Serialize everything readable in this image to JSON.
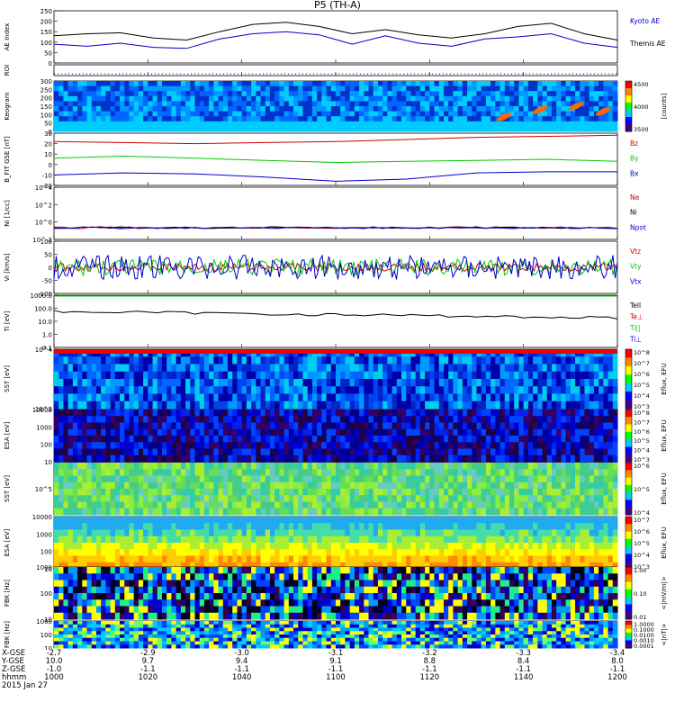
{
  "title": "P5 (TH-A)",
  "date_label": "2015 Jan 27",
  "footer": {
    "row_labels": [
      "X-GSE",
      "Y-GSE",
      "Z-GSE",
      "hhmm"
    ],
    "ticks": [
      {
        "xgse": "-2.7",
        "ygse": "10.0",
        "zgse": "-1.0",
        "hhmm": "1000"
      },
      {
        "xgse": "-2.9",
        "ygse": "9.7",
        "zgse": "-1.1",
        "hhmm": "1020"
      },
      {
        "xgse": "-3.0",
        "ygse": "9.4",
        "zgse": "-1.1",
        "hhmm": "1040"
      },
      {
        "xgse": "-3.1",
        "ygse": "9.1",
        "zgse": "-1.1",
        "hhmm": "1100"
      },
      {
        "xgse": "-3.2",
        "ygse": "8.8",
        "zgse": "-1.1",
        "hhmm": "1120"
      },
      {
        "xgse": "-3.3",
        "ygse": "8.4",
        "zgse": "-1.1",
        "hhmm": "1140"
      },
      {
        "xgse": "-3.4",
        "ygse": "8.0",
        "zgse": "-1.1",
        "hhmm": "1200"
      }
    ]
  },
  "chart_data": [
    {
      "type": "line",
      "id": "ae",
      "ylabel": "AE Index",
      "ylim": [
        0,
        250
      ],
      "yticks": [
        "0",
        "50",
        "100",
        "150",
        "200",
        "250"
      ],
      "x": [
        1000,
        1010,
        1020,
        1030,
        1040,
        1050,
        1055,
        1100,
        1105,
        1110,
        1115,
        1120,
        1125,
        1130,
        1140,
        1150,
        1155,
        1200
      ],
      "series": [
        {
          "name": "Kyoto AE",
          "color": "#0000cc",
          "values": [
            90,
            80,
            95,
            75,
            70,
            115,
            140,
            150,
            135,
            90,
            130,
            95,
            80,
            115,
            125,
            140,
            95,
            75
          ]
        },
        {
          "name": "Themis AE",
          "color": "#000000",
          "values": [
            130,
            140,
            145,
            120,
            110,
            150,
            185,
            195,
            175,
            140,
            160,
            135,
            120,
            140,
            175,
            190,
            140,
            110
          ]
        }
      ]
    },
    {
      "type": "line",
      "id": "roi",
      "ylabel": "ROI",
      "yticks": []
    },
    {
      "type": "heatmap",
      "id": "keogram",
      "ylabel": "Keogram",
      "ylim": [
        0,
        300
      ],
      "yticks": [
        "0",
        "50",
        "100",
        "150",
        "200",
        "250",
        "300"
      ],
      "colorbar": {
        "label": "[counts]",
        "ticks": [
          "3500",
          "4000",
          "4500"
        ]
      }
    },
    {
      "type": "line",
      "id": "bfield",
      "ylabel": "B_FIT GSE [nT]",
      "ylim": [
        -20,
        30
      ],
      "yticks": [
        "-20",
        "-10",
        "0",
        "10",
        "20",
        "30"
      ],
      "series": [
        {
          "name": "Bz",
          "color": "#cc0000",
          "values": [
            22,
            21,
            20,
            21,
            22,
            24,
            26,
            27,
            28
          ]
        },
        {
          "name": "By",
          "color": "#00cc00",
          "values": [
            6,
            8,
            6,
            4,
            2,
            3,
            4,
            5,
            3
          ]
        },
        {
          "name": "Bx",
          "color": "#0000cc",
          "values": [
            -10,
            -8,
            -9,
            -12,
            -16,
            -14,
            -8,
            -7,
            -7
          ]
        }
      ]
    },
    {
      "type": "line",
      "id": "ni",
      "ylabel": "Ni [1/cc]",
      "yticks": [
        "10^-2",
        "10^0",
        "10^2",
        "10^4"
      ],
      "series": [
        {
          "name": "Ne",
          "color": "#cc0000"
        },
        {
          "name": "Ni",
          "color": "#000000"
        },
        {
          "name": "Npot",
          "color": "#0000cc"
        }
      ]
    },
    {
      "type": "line",
      "id": "vi",
      "ylabel": "Vi [km/s]",
      "ylim": [
        -100,
        100
      ],
      "yticks": [
        "-100",
        "-50",
        "0",
        "50",
        "100"
      ],
      "series": [
        {
          "name": "Vtz",
          "color": "#cc0000"
        },
        {
          "name": "Vty",
          "color": "#00cc00"
        },
        {
          "name": "Vtx",
          "color": "#0000cc"
        }
      ]
    },
    {
      "type": "line",
      "id": "ti",
      "ylabel": "Ti [eV]",
      "yticks": [
        "0.1",
        "1.0",
        "10.0",
        "100.0",
        "1000.0"
      ],
      "series": [
        {
          "name": "Tell",
          "color": "#000000"
        },
        {
          "name": "Te⊥",
          "color": "#cc0000"
        },
        {
          "name": "Ti||",
          "color": "#00cc00"
        },
        {
          "name": "Ti⊥",
          "color": "#0000cc"
        }
      ]
    },
    {
      "type": "heatmap",
      "id": "sst_e",
      "ylabel": "SST [eV]",
      "yticks": [
        "10^2",
        "10^4"
      ],
      "colorbar": {
        "label": "Eflux, EFU",
        "ticks": [
          "10^3",
          "10^4",
          "10^5",
          "10^6",
          "10^7",
          "10^8"
        ]
      }
    },
    {
      "type": "heatmap",
      "id": "esa_e",
      "ylabel": "ESA [eV]",
      "yticks": [
        "10",
        "100",
        "1000",
        "10000"
      ],
      "colorbar": {
        "label": "Eflux, EFU",
        "ticks": [
          "10^3",
          "10^4",
          "10^5",
          "10^6",
          "10^7",
          "10^8"
        ]
      }
    },
    {
      "type": "heatmap",
      "id": "sst_i",
      "ylabel": "SST [eV]",
      "yticks": [
        "10^5"
      ],
      "colorbar": {
        "label": "Eflux, EFU",
        "ticks": [
          "10^4",
          "10^5",
          "10^6"
        ]
      }
    },
    {
      "type": "heatmap",
      "id": "esa_i",
      "ylabel": "ESA [eV]",
      "yticks": [
        "10",
        "100",
        "1000",
        "10000"
      ],
      "colorbar": {
        "label": "Eflux, EFU",
        "ticks": [
          "10^3",
          "10^4",
          "10^5",
          "10^6",
          "10^7"
        ]
      }
    },
    {
      "type": "heatmap",
      "id": "fbk_e",
      "ylabel": "FBK [Hz]",
      "yticks": [
        "10",
        "100",
        "1000"
      ],
      "colorbar": {
        "label": "<|mV/m|>",
        "ticks": [
          "0.01",
          "0.10",
          "1.00"
        ]
      }
    },
    {
      "type": "heatmap",
      "id": "fbk_b",
      "ylabel": "FBK [Hz]",
      "yticks": [
        "10",
        "100",
        "1000"
      ],
      "colorbar": {
        "label": "<|nT|>",
        "ticks": [
          "0.0001",
          "0.0010",
          "0.0100",
          "0.1000",
          "1.0000"
        ]
      }
    }
  ]
}
